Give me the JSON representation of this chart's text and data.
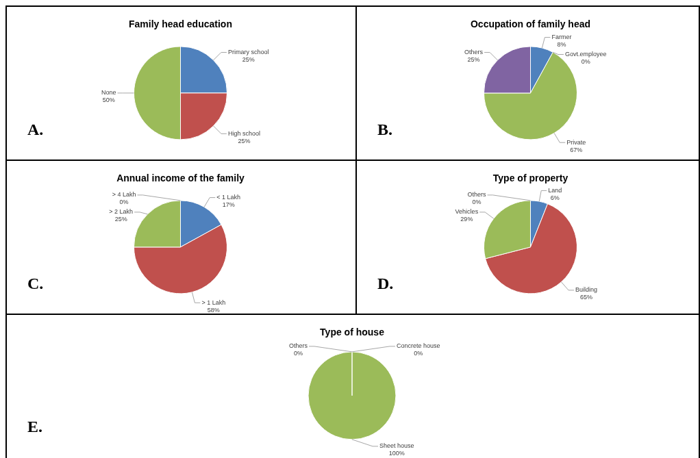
{
  "chart_data": [
    {
      "type": "pie",
      "title": "Family head education",
      "categories": [
        "Primary school",
        "High school",
        "None"
      ],
      "values": [
        25,
        25,
        50
      ],
      "colors": [
        "#4f81bd",
        "#c0504d",
        "#9bbb59"
      ],
      "value_labels": [
        "25%",
        "25%",
        "50%"
      ],
      "annotations": [
        "A."
      ]
    },
    {
      "type": "pie",
      "title": "Occupation of family head",
      "categories": [
        "Farmer",
        "Govt.employee",
        "Private",
        "Others"
      ],
      "values": [
        8,
        0,
        67,
        25
      ],
      "colors": [
        "#4f81bd",
        "#c0504d",
        "#9bbb59",
        "#8064a2"
      ],
      "value_labels": [
        "8%",
        "0%",
        "67%",
        "25%"
      ],
      "annotations": [
        "B."
      ]
    },
    {
      "type": "pie",
      "title": "Annual income of the family",
      "categories": [
        "< 1 Lakh",
        "> 1 Lakh",
        "> 2 Lakh",
        "> 4 Lakh"
      ],
      "values": [
        17,
        58,
        25,
        0
      ],
      "colors": [
        "#4f81bd",
        "#c0504d",
        "#9bbb59",
        "#8064a2"
      ],
      "value_labels": [
        "17%",
        "58%",
        "25%",
        "0%"
      ],
      "annotations": [
        "C."
      ]
    },
    {
      "type": "pie",
      "title": "Type of property",
      "categories": [
        "Land",
        "Building",
        "Vehicles",
        "Others"
      ],
      "values": [
        6,
        65,
        29,
        0
      ],
      "colors": [
        "#4f81bd",
        "#c0504d",
        "#9bbb59",
        "#8064a2"
      ],
      "value_labels": [
        "6%",
        "65%",
        "29%",
        "0%"
      ],
      "annotations": [
        "D."
      ]
    },
    {
      "type": "pie",
      "title": "Type of house",
      "categories": [
        "Concrete house",
        "Sheet house",
        "Others"
      ],
      "values": [
        0,
        100,
        0
      ],
      "colors": [
        "#4f81bd",
        "#9bbb59",
        "#8064a2"
      ],
      "value_labels": [
        "0%",
        "100%",
        "0%"
      ],
      "annotations": [
        "E."
      ]
    }
  ]
}
